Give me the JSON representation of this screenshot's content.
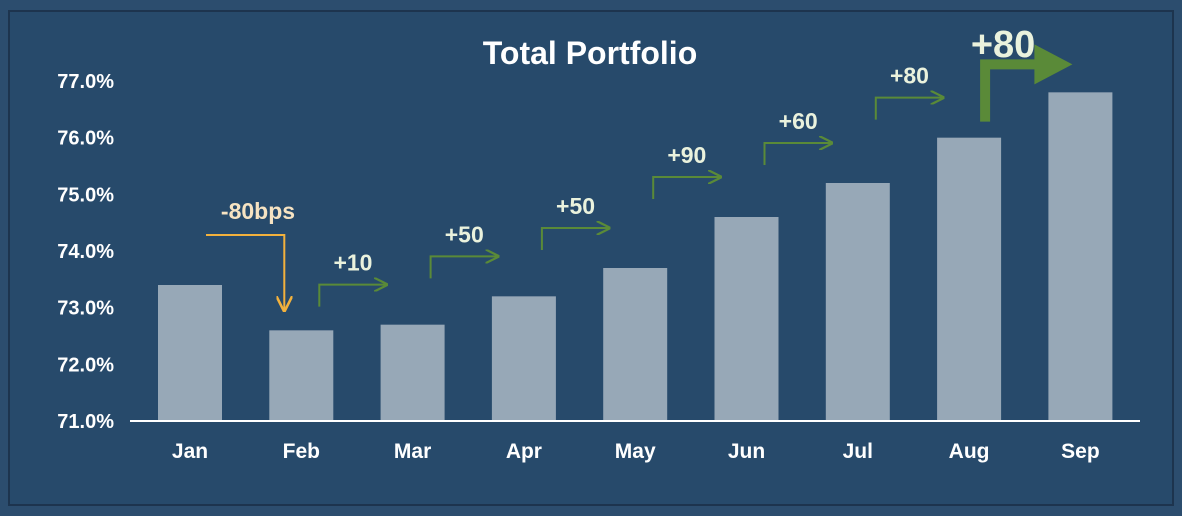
{
  "chart_data": {
    "type": "bar",
    "title": "Total Portfolio",
    "categories": [
      "Jan",
      "Feb",
      "Mar",
      "Apr",
      "May",
      "Jun",
      "Jul",
      "Aug",
      "Sep"
    ],
    "values": [
      73.4,
      72.6,
      72.7,
      73.2,
      73.7,
      74.6,
      75.2,
      76.0,
      76.8
    ],
    "ylim": [
      71.0,
      77.0
    ],
    "yticks": [
      "71.0%",
      "72.0%",
      "73.0%",
      "74.0%",
      "75.0%",
      "76.0%",
      "77.0%"
    ],
    "xlabel": "",
    "ylabel": "",
    "grid": false,
    "bar_color": "#97a8b7",
    "annotations": [
      {
        "label": "-80bps",
        "from": 0,
        "to": 1,
        "color": "#f2b13d",
        "style": "down"
      },
      {
        "label": "+10",
        "from": 1,
        "to": 2,
        "color": "#5a8a38",
        "style": "up"
      },
      {
        "label": "+50",
        "from": 2,
        "to": 3,
        "color": "#5a8a38",
        "style": "up"
      },
      {
        "label": "+50",
        "from": 3,
        "to": 4,
        "color": "#5a8a38",
        "style": "up"
      },
      {
        "label": "+90",
        "from": 4,
        "to": 5,
        "color": "#5a8a38",
        "style": "up"
      },
      {
        "label": "+60",
        "from": 5,
        "to": 6,
        "color": "#5a8a38",
        "style": "up"
      },
      {
        "label": "+80",
        "from": 6,
        "to": 7,
        "color": "#5a8a38",
        "style": "up"
      },
      {
        "label": "+80",
        "from": 7,
        "to": 8,
        "color": "#5a8a38",
        "style": "big"
      }
    ]
  }
}
